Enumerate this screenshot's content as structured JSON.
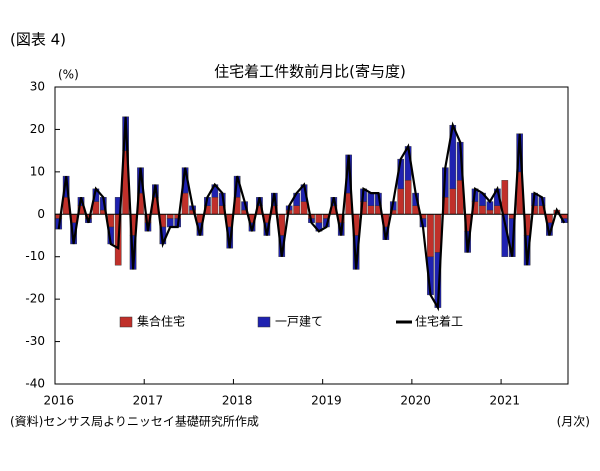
{
  "chart_data": {
    "type": "bar",
    "stacked": true,
    "figure_label": "(図表 4)",
    "title": "住宅着工件数前月比(寄与度)",
    "y_label": "(%)",
    "x_label": "(月次)",
    "source": "(資料)センサス局よりニッセイ基礎研究所作成",
    "categories": [
      "2016",
      null,
      null,
      null,
      null,
      null,
      null,
      null,
      null,
      null,
      null,
      null,
      "2017",
      null,
      null,
      null,
      null,
      null,
      null,
      null,
      null,
      null,
      null,
      null,
      "2018",
      null,
      null,
      null,
      null,
      null,
      null,
      null,
      null,
      null,
      null,
      null,
      "2019",
      null,
      null,
      null,
      null,
      null,
      null,
      null,
      null,
      null,
      null,
      null,
      "2020",
      null,
      null,
      null,
      null,
      null,
      null,
      null,
      null,
      null,
      null,
      null,
      "2021",
      null,
      null,
      null,
      null,
      null,
      null,
      null,
      null
    ],
    "series": [
      {
        "name": "集合住宅",
        "type": "bar",
        "color": "#c0302a",
        "values": [
          -1,
          4,
          -2,
          2,
          -1,
          3,
          1,
          -3,
          -12,
          15,
          -5,
          5,
          -2,
          4,
          -3,
          -1,
          -1,
          5,
          1,
          -2,
          2,
          4,
          2,
          -3,
          4,
          1,
          -2,
          2,
          -2,
          2,
          -5,
          1,
          2,
          3,
          -1,
          -2,
          -1,
          2,
          -2,
          5,
          -5,
          3,
          2,
          2,
          -3,
          1,
          6,
          8,
          2,
          -1,
          -10,
          -9,
          4,
          6,
          8,
          -4,
          3,
          2,
          1,
          2,
          8,
          -1,
          10,
          -5,
          2,
          2,
          -2,
          1,
          -1
        ]
      },
      {
        "name": "一戸建て",
        "type": "bar",
        "color": "#1f22b0",
        "values": [
          -2.5,
          5,
          -5,
          2,
          -1,
          3,
          3,
          -4,
          4,
          8,
          -8,
          6,
          -2,
          3,
          -4,
          -2,
          -2,
          6,
          1,
          -3,
          2,
          3,
          3,
          -5,
          5,
          2,
          -2,
          2,
          -3,
          3,
          -5,
          1,
          3,
          4,
          -1,
          -2,
          -2,
          2,
          -3,
          9,
          -8,
          3,
          3,
          3,
          -3,
          2,
          7,
          8,
          3,
          -2,
          -9,
          -13,
          7,
          15,
          9,
          -5,
          3,
          3,
          2,
          4,
          -10,
          -9,
          9,
          -7,
          3,
          2,
          -3,
          0,
          -1
        ]
      },
      {
        "name": "住宅着工",
        "type": "line",
        "color": "#000000",
        "values": [
          -3.5,
          9,
          -7,
          4,
          -2,
          6,
          4,
          -7,
          -8,
          23,
          -13,
          11,
          -4,
          7,
          -7,
          -3,
          -3,
          11,
          2,
          -5,
          4,
          7,
          5,
          -8,
          9,
          3,
          -4,
          4,
          -5,
          5,
          -10,
          2,
          5,
          7,
          -2,
          -4,
          -3,
          4,
          -5,
          14,
          -13,
          6,
          5,
          5,
          -6,
          3,
          13,
          16,
          5,
          -3,
          -19,
          -22,
          11,
          21,
          17,
          -9,
          6,
          5,
          3,
          6,
          -2,
          -10,
          19,
          -12,
          5,
          4,
          -5,
          1,
          -2
        ]
      }
    ],
    "ylim": [
      -40,
      30
    ],
    "yticks": [
      -40,
      -30,
      -20,
      -10,
      0,
      10,
      20,
      30
    ],
    "grid": false
  }
}
